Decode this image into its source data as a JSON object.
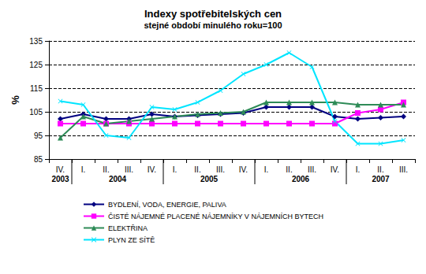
{
  "chart_data": {
    "type": "line",
    "title": "Indexy spotřebitelských cen",
    "subtitle": "stejné období minulého roku=100",
    "y_label": "%",
    "categories": [
      "IV.",
      "I.",
      "II.",
      "III.",
      "IV.",
      "I.",
      "II.",
      "III.",
      "IV.",
      "I.",
      "II.",
      "III.",
      "IV.",
      "I.",
      "II.",
      "III."
    ],
    "category_groups": [
      {
        "label": "2003",
        "count": 1
      },
      {
        "label": "2004",
        "count": 4
      },
      {
        "label": "2005",
        "count": 4
      },
      {
        "label": "2006",
        "count": 4
      },
      {
        "label": "2007",
        "count": 3
      }
    ],
    "ylim": [
      85,
      135
    ],
    "yticks": [
      85,
      95,
      105,
      115,
      125,
      135
    ],
    "grid": true,
    "legend": "bottom",
    "series": [
      {
        "name": "BYDLENÍ, VODA, ENERGIE, PALIVA",
        "color": "#000080",
        "marker": "diamond",
        "values": [
          102,
          104,
          102,
          102,
          104,
          103,
          103.5,
          104,
          104.5,
          107,
          107,
          107,
          103,
          102,
          102.5,
          103
        ]
      },
      {
        "name": "ČISTÉ NÁJEMNÉ PLACENÉ NÁJEMNÍKY V NÁJEMNÍCH BYTECH",
        "color": "#ff00ff",
        "marker": "square",
        "values": [
          100,
          100,
          100,
          100,
          100,
          100,
          100,
          100,
          100,
          100,
          100,
          100,
          100,
          104.5,
          106,
          109
        ]
      },
      {
        "name": "ELEKTŘINA",
        "color": "#2e8b57",
        "marker": "triangle",
        "values": [
          94,
          103,
          100,
          101,
          102,
          103,
          104,
          104.5,
          105,
          109,
          109,
          109,
          109,
          108,
          108,
          108
        ]
      },
      {
        "name": "PLYN ZE SÍTĚ",
        "color": "#00e5ff",
        "marker": "x",
        "values": [
          109.5,
          108,
          95,
          94,
          107,
          106,
          109,
          114,
          121,
          125,
          130,
          124,
          101,
          91.5,
          91.5,
          93
        ]
      }
    ]
  }
}
